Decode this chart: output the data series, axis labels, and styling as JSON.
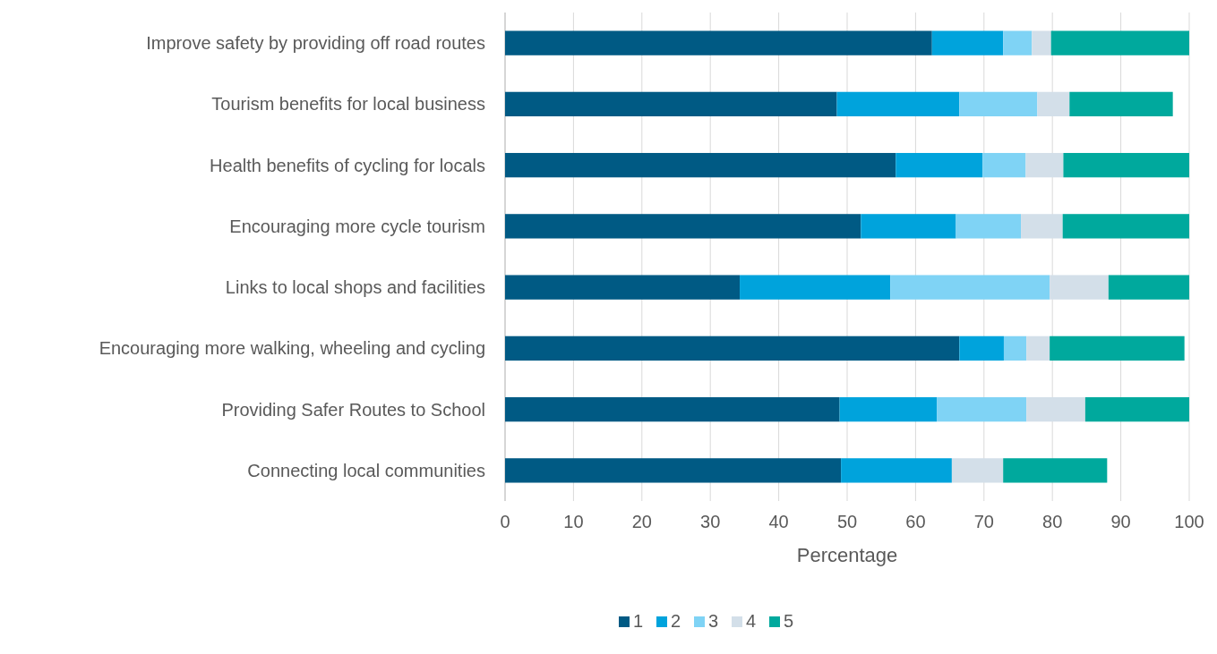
{
  "chart_data": {
    "type": "bar",
    "orientation": "horizontal",
    "stacked": true,
    "xlabel": "Percentage",
    "categories": [
      "Improve safety by providing off road routes",
      "Tourism benefits for local business",
      "Health benefits of cycling for locals",
      "Encouraging more cycle tourism",
      "Links to local shops and facilities",
      "Encouraging more walking, wheeling and cycling",
      "Providing Safer Routes to School",
      "Connecting local communities"
    ],
    "series": [
      {
        "name": "1",
        "color": "#005a84",
        "values": [
          62.4,
          48.5,
          57.1,
          52.0,
          34.3,
          66.4,
          48.9,
          49.1
        ]
      },
      {
        "name": "2",
        "color": "#00a3dc",
        "values": [
          10.4,
          17.9,
          12.7,
          13.9,
          22.0,
          6.5,
          14.2,
          16.2
        ]
      },
      {
        "name": "3",
        "color": "#7fd3f5",
        "values": [
          4.2,
          11.4,
          6.3,
          9.5,
          23.3,
          3.3,
          13.1,
          0
        ]
      },
      {
        "name": "4",
        "color": "#d3dfe9",
        "values": [
          2.8,
          4.7,
          5.5,
          6.1,
          8.6,
          3.4,
          8.6,
          7.5
        ]
      },
      {
        "name": "5",
        "color": "#00a99d",
        "values": [
          20.2,
          15.1,
          18.4,
          18.5,
          11.8,
          19.7,
          15.2,
          15.2
        ]
      }
    ],
    "xlim": [
      0,
      100
    ],
    "xticks": [
      0,
      10,
      20,
      30,
      40,
      50,
      60,
      70,
      80,
      90,
      100
    ],
    "grid": "x",
    "legend": "bottom"
  }
}
